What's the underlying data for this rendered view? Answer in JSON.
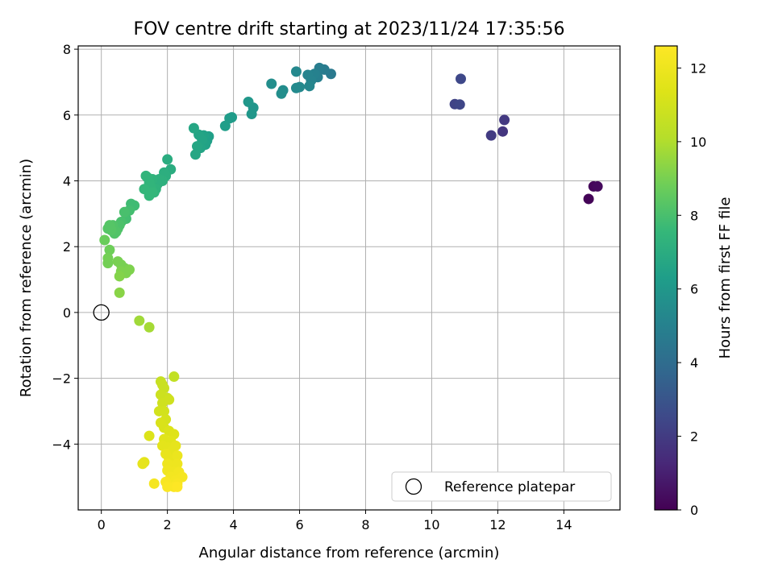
{
  "chart_data": {
    "type": "scatter",
    "title": "FOV centre drift starting at 2023/11/24 17:35:56",
    "xlabel": "Angular distance from reference (arcmin)",
    "ylabel": "Rotation from reference (arcmin)",
    "xlim": [
      -0.7,
      15.7
    ],
    "ylim": [
      -6.0,
      8.1
    ],
    "xticks": [
      0,
      2,
      4,
      6,
      8,
      10,
      12,
      14
    ],
    "yticks": [
      -4,
      -2,
      0,
      2,
      4,
      6,
      8
    ],
    "grid": true,
    "legend": {
      "placement": "lower right",
      "entries": [
        "Reference platepar"
      ]
    },
    "reference_point": {
      "x": 0,
      "y": 0,
      "marker": "open-circle"
    },
    "colorbar": {
      "label": "Hours from first FF file",
      "colormap": "viridis",
      "range": [
        0,
        12.6
      ],
      "ticks": [
        0,
        2,
        4,
        6,
        8,
        10,
        12
      ]
    },
    "points": [
      {
        "x": 14.75,
        "y": 3.45,
        "c": 0.1
      },
      {
        "x": 14.9,
        "y": 3.83,
        "c": 0.2
      },
      {
        "x": 15.02,
        "y": 3.83,
        "c": 0.3
      },
      {
        "x": 12.15,
        "y": 5.5,
        "c": 1.8
      },
      {
        "x": 12.2,
        "y": 5.85,
        "c": 1.9
      },
      {
        "x": 11.8,
        "y": 5.38,
        "c": 2.0
      },
      {
        "x": 10.7,
        "y": 6.33,
        "c": 2.3
      },
      {
        "x": 10.85,
        "y": 6.32,
        "c": 2.4
      },
      {
        "x": 10.88,
        "y": 7.1,
        "c": 2.5
      },
      {
        "x": 6.95,
        "y": 7.25,
        "c": 4.6
      },
      {
        "x": 6.75,
        "y": 7.38,
        "c": 4.7
      },
      {
        "x": 6.6,
        "y": 7.43,
        "c": 4.8
      },
      {
        "x": 6.55,
        "y": 7.15,
        "c": 4.9
      },
      {
        "x": 6.45,
        "y": 7.25,
        "c": 5.0
      },
      {
        "x": 6.35,
        "y": 7.05,
        "c": 5.1
      },
      {
        "x": 6.25,
        "y": 7.22,
        "c": 5.1
      },
      {
        "x": 6.3,
        "y": 6.88,
        "c": 5.2
      },
      {
        "x": 6.0,
        "y": 6.85,
        "c": 5.3
      },
      {
        "x": 5.9,
        "y": 6.82,
        "c": 5.4
      },
      {
        "x": 5.9,
        "y": 7.32,
        "c": 5.3
      },
      {
        "x": 5.5,
        "y": 6.75,
        "c": 5.5
      },
      {
        "x": 5.45,
        "y": 6.65,
        "c": 5.6
      },
      {
        "x": 5.15,
        "y": 6.95,
        "c": 5.6
      },
      {
        "x": 4.6,
        "y": 6.22,
        "c": 5.9
      },
      {
        "x": 4.55,
        "y": 6.03,
        "c": 6.0
      },
      {
        "x": 4.45,
        "y": 6.4,
        "c": 6.0
      },
      {
        "x": 3.95,
        "y": 5.93,
        "c": 6.2
      },
      {
        "x": 3.88,
        "y": 5.9,
        "c": 6.2
      },
      {
        "x": 3.75,
        "y": 5.67,
        "c": 6.3
      },
      {
        "x": 3.25,
        "y": 5.35,
        "c": 6.4
      },
      {
        "x": 3.2,
        "y": 5.22,
        "c": 6.4
      },
      {
        "x": 3.15,
        "y": 5.1,
        "c": 6.5
      },
      {
        "x": 3.1,
        "y": 5.38,
        "c": 6.5
      },
      {
        "x": 3.05,
        "y": 5.25,
        "c": 6.6
      },
      {
        "x": 3.0,
        "y": 5.0,
        "c": 6.6
      },
      {
        "x": 2.95,
        "y": 5.4,
        "c": 6.6
      },
      {
        "x": 2.9,
        "y": 5.05,
        "c": 6.7
      },
      {
        "x": 2.85,
        "y": 4.8,
        "c": 6.7
      },
      {
        "x": 2.8,
        "y": 5.6,
        "c": 6.7
      },
      {
        "x": 2.1,
        "y": 4.35,
        "c": 7.0
      },
      {
        "x": 2.0,
        "y": 4.65,
        "c": 7.0
      },
      {
        "x": 1.95,
        "y": 4.15,
        "c": 7.1
      },
      {
        "x": 1.9,
        "y": 4.25,
        "c": 7.1
      },
      {
        "x": 1.85,
        "y": 4.0,
        "c": 7.2
      },
      {
        "x": 1.75,
        "y": 4.05,
        "c": 7.2
      },
      {
        "x": 1.7,
        "y": 3.9,
        "c": 7.2
      },
      {
        "x": 1.65,
        "y": 3.75,
        "c": 7.3
      },
      {
        "x": 1.6,
        "y": 3.65,
        "c": 7.3
      },
      {
        "x": 1.55,
        "y": 4.05,
        "c": 7.3
      },
      {
        "x": 1.5,
        "y": 3.8,
        "c": 7.4
      },
      {
        "x": 1.45,
        "y": 3.95,
        "c": 7.4
      },
      {
        "x": 1.4,
        "y": 4.1,
        "c": 7.4
      },
      {
        "x": 1.35,
        "y": 4.15,
        "c": 7.4
      },
      {
        "x": 1.3,
        "y": 3.75,
        "c": 7.5
      },
      {
        "x": 1.45,
        "y": 3.55,
        "c": 7.5
      },
      {
        "x": 1.55,
        "y": 3.65,
        "c": 7.5
      },
      {
        "x": 1.0,
        "y": 3.25,
        "c": 7.8
      },
      {
        "x": 0.9,
        "y": 3.3,
        "c": 7.8
      },
      {
        "x": 0.85,
        "y": 3.1,
        "c": 7.9
      },
      {
        "x": 0.75,
        "y": 2.85,
        "c": 7.9
      },
      {
        "x": 0.7,
        "y": 3.05,
        "c": 8.0
      },
      {
        "x": 0.6,
        "y": 2.75,
        "c": 8.0
      },
      {
        "x": 0.55,
        "y": 2.65,
        "c": 8.1
      },
      {
        "x": 0.5,
        "y": 2.55,
        "c": 8.1
      },
      {
        "x": 0.45,
        "y": 2.45,
        "c": 8.2
      },
      {
        "x": 0.4,
        "y": 2.4,
        "c": 8.2
      },
      {
        "x": 0.35,
        "y": 2.65,
        "c": 8.2
      },
      {
        "x": 0.3,
        "y": 2.5,
        "c": 8.3
      },
      {
        "x": 0.2,
        "y": 2.55,
        "c": 8.3
      },
      {
        "x": 0.25,
        "y": 2.65,
        "c": 8.3
      },
      {
        "x": 0.1,
        "y": 2.2,
        "c": 8.7
      },
      {
        "x": 0.25,
        "y": 1.9,
        "c": 8.8
      },
      {
        "x": 0.2,
        "y": 1.65,
        "c": 8.9
      },
      {
        "x": 0.2,
        "y": 1.5,
        "c": 8.9
      },
      {
        "x": 0.5,
        "y": 1.55,
        "c": 9.0
      },
      {
        "x": 0.6,
        "y": 1.45,
        "c": 9.0
      },
      {
        "x": 0.7,
        "y": 1.35,
        "c": 9.0
      },
      {
        "x": 0.85,
        "y": 1.3,
        "c": 9.1
      },
      {
        "x": 0.6,
        "y": 1.25,
        "c": 9.1
      },
      {
        "x": 0.75,
        "y": 1.2,
        "c": 9.1
      },
      {
        "x": 0.55,
        "y": 1.1,
        "c": 9.2
      },
      {
        "x": 0.55,
        "y": 0.6,
        "c": 9.3
      },
      {
        "x": 1.15,
        "y": -0.25,
        "c": 9.7
      },
      {
        "x": 1.45,
        "y": -0.45,
        "c": 9.8
      },
      {
        "x": 2.2,
        "y": -1.95,
        "c": 10.5
      },
      {
        "x": 1.8,
        "y": -2.1,
        "c": 10.6
      },
      {
        "x": 1.85,
        "y": -2.2,
        "c": 10.7
      },
      {
        "x": 1.9,
        "y": -2.3,
        "c": 10.7
      },
      {
        "x": 1.8,
        "y": -2.5,
        "c": 10.8
      },
      {
        "x": 2.0,
        "y": -2.6,
        "c": 10.8
      },
      {
        "x": 1.85,
        "y": -2.75,
        "c": 10.9
      },
      {
        "x": 2.05,
        "y": -2.65,
        "c": 10.9
      },
      {
        "x": 1.75,
        "y": -3.0,
        "c": 11.0
      },
      {
        "x": 1.9,
        "y": -3.0,
        "c": 11.0
      },
      {
        "x": 1.95,
        "y": -3.25,
        "c": 11.1
      },
      {
        "x": 1.8,
        "y": -3.35,
        "c": 11.2
      },
      {
        "x": 1.9,
        "y": -3.5,
        "c": 11.2
      },
      {
        "x": 2.05,
        "y": -3.6,
        "c": 11.3
      },
      {
        "x": 1.45,
        "y": -3.75,
        "c": 11.3
      },
      {
        "x": 2.2,
        "y": -3.7,
        "c": 11.4
      },
      {
        "x": 1.9,
        "y": -3.85,
        "c": 11.5
      },
      {
        "x": 2.1,
        "y": -3.9,
        "c": 11.5
      },
      {
        "x": 1.85,
        "y": -4.05,
        "c": 11.6
      },
      {
        "x": 2.0,
        "y": -4.1,
        "c": 11.6
      },
      {
        "x": 2.15,
        "y": -4.2,
        "c": 11.7
      },
      {
        "x": 2.25,
        "y": -4.05,
        "c": 11.7
      },
      {
        "x": 1.95,
        "y": -4.3,
        "c": 11.8
      },
      {
        "x": 2.05,
        "y": -4.45,
        "c": 11.8
      },
      {
        "x": 2.3,
        "y": -4.35,
        "c": 11.9
      },
      {
        "x": 1.3,
        "y": -4.55,
        "c": 11.6
      },
      {
        "x": 1.25,
        "y": -4.6,
        "c": 11.7
      },
      {
        "x": 2.0,
        "y": -4.6,
        "c": 12.0
      },
      {
        "x": 2.15,
        "y": -4.65,
        "c": 12.0
      },
      {
        "x": 2.3,
        "y": -4.6,
        "c": 12.0
      },
      {
        "x": 2.0,
        "y": -4.8,
        "c": 12.1
      },
      {
        "x": 2.2,
        "y": -4.85,
        "c": 12.1
      },
      {
        "x": 2.35,
        "y": -4.85,
        "c": 12.2
      },
      {
        "x": 2.1,
        "y": -5.0,
        "c": 12.2
      },
      {
        "x": 2.45,
        "y": -5.0,
        "c": 12.3
      },
      {
        "x": 2.25,
        "y": -5.1,
        "c": 12.3
      },
      {
        "x": 1.95,
        "y": -5.15,
        "c": 12.4
      },
      {
        "x": 2.3,
        "y": -5.2,
        "c": 12.4
      },
      {
        "x": 1.6,
        "y": -5.2,
        "c": 12.3
      },
      {
        "x": 2.0,
        "y": -5.3,
        "c": 12.5
      },
      {
        "x": 2.2,
        "y": -5.3,
        "c": 12.5
      },
      {
        "x": 2.3,
        "y": -5.3,
        "c": 12.6
      }
    ]
  }
}
